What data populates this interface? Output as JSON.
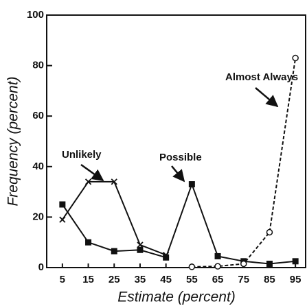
{
  "chart_data": {
    "type": "line",
    "x_label": "Estimate (percent)",
    "y_label": "Frequency (percent)",
    "x": [
      5,
      15,
      25,
      35,
      45,
      55,
      65,
      75,
      85,
      95
    ],
    "xlim": [
      0,
      100
    ],
    "xticks": [
      5,
      15,
      25,
      35,
      45,
      55,
      65,
      75,
      85,
      95
    ],
    "ylim": [
      0,
      100
    ],
    "yticks": [
      0,
      20,
      40,
      60,
      80,
      100
    ],
    "series": [
      {
        "name": "Unlikely",
        "color": "#111111",
        "marker": "x",
        "linestyle": "solid",
        "values": [
          19,
          34,
          34,
          9,
          5,
          null,
          null,
          null,
          null,
          null
        ]
      },
      {
        "name": "Possible",
        "color": "#111111",
        "marker": "square",
        "linestyle": "solid",
        "values": [
          25,
          10,
          6.5,
          7,
          4,
          33,
          4.5,
          2.5,
          1.5,
          2.5
        ]
      },
      {
        "name": "Almost Always",
        "color": "#111111",
        "marker": "circle",
        "linestyle": "dashed",
        "values": [
          null,
          null,
          null,
          null,
          null,
          0.3,
          0.5,
          1.5,
          14,
          83
        ]
      }
    ]
  }
}
